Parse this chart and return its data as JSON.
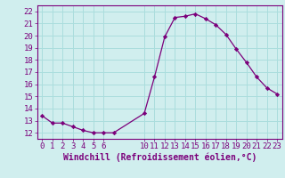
{
  "x": [
    0,
    1,
    2,
    3,
    4,
    5,
    6,
    7,
    10,
    11,
    12,
    13,
    14,
    15,
    16,
    17,
    18,
    19,
    20,
    21,
    22,
    23
  ],
  "y": [
    13.4,
    12.8,
    12.8,
    12.5,
    12.2,
    12.0,
    12.0,
    12.0,
    13.6,
    16.6,
    19.9,
    21.5,
    21.6,
    21.8,
    21.4,
    20.9,
    20.1,
    18.9,
    17.8,
    16.6,
    15.7,
    15.2
  ],
  "line_color": "#7b007b",
  "marker": "D",
  "marker_size": 2.2,
  "bg_color": "#d0eeee",
  "grid_color": "#aadddd",
  "tick_color": "#7b007b",
  "spine_color": "#7b007b",
  "xlabel": "Windchill (Refroidissement éolien,°C)",
  "xlim": [
    -0.5,
    23.5
  ],
  "ylim": [
    11.5,
    22.5
  ],
  "yticks": [
    12,
    13,
    14,
    15,
    16,
    17,
    18,
    19,
    20,
    21,
    22
  ],
  "xticks": [
    0,
    1,
    2,
    3,
    4,
    5,
    6,
    10,
    11,
    12,
    13,
    14,
    15,
    16,
    17,
    18,
    19,
    20,
    21,
    22,
    23
  ],
  "font_size": 6.5,
  "xlabel_font_size": 7.0
}
